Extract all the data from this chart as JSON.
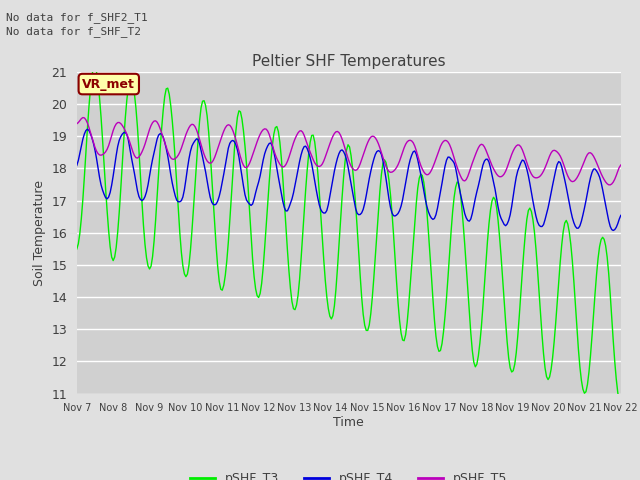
{
  "title": "Peltier SHF Temperatures",
  "ylabel": "Soil Temperature",
  "xlabel": "Time",
  "ylim": [
    11.0,
    21.0
  ],
  "yticks": [
    11.0,
    12.0,
    13.0,
    14.0,
    15.0,
    16.0,
    17.0,
    18.0,
    19.0,
    20.0,
    21.0
  ],
  "xtick_labels": [
    "Nov 7",
    "Nov 8",
    "Nov 9",
    "Nov 10",
    "Nov 11",
    "Nov 12",
    "Nov 13",
    "Nov 14",
    "Nov 15",
    "Nov 16",
    "Nov 17",
    "Nov 18",
    "Nov 19",
    "Nov 20",
    "Nov 21",
    "Nov 22"
  ],
  "no_data_text1": "No data for f_SHF2_T1",
  "no_data_text2": "No data for f_SHF_T2",
  "vr_met_label": "VR_met",
  "legend_labels": [
    "pSHF_T3",
    "pSHF_T4",
    "pSHF_T5"
  ],
  "line_colors": [
    "#00ee00",
    "#0000dd",
    "#bb00bb"
  ],
  "bg_color": "#e0e0e0",
  "plot_bg_color": "#d0d0d0",
  "grid_color": "#ffffff",
  "title_color": "#404040",
  "text_color": "#404040",
  "n_points": 360,
  "n_days": 15
}
